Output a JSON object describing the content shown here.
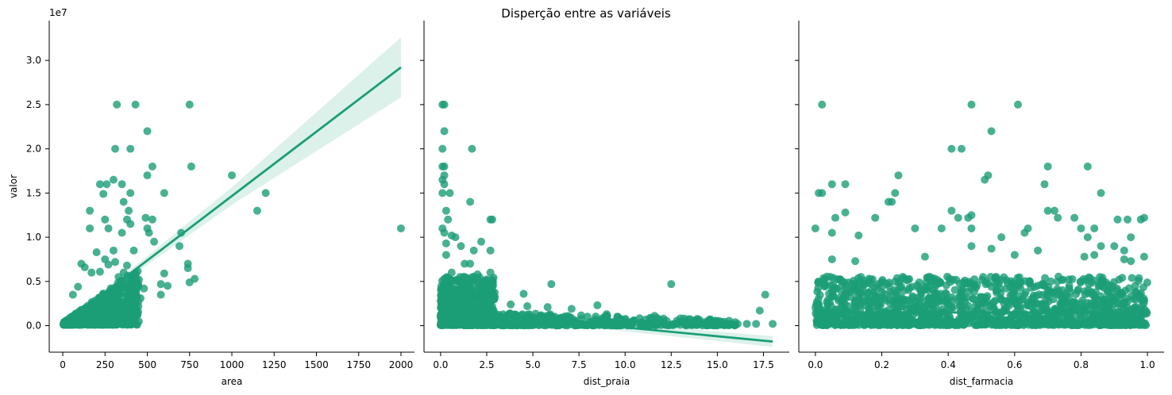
{
  "figure": {
    "title": "Disperção entre as variáveis",
    "colors": {
      "points": "#1b9e77",
      "line": "#1b9e77",
      "band": "#1b9e77"
    }
  },
  "chart_data": [
    {
      "type": "scatter",
      "title": "",
      "xlabel": "area",
      "ylabel": "valor",
      "y_offset_label": "1e7",
      "xlim": [
        -80,
        2080
      ],
      "ylim": [
        -3000000.0,
        34500000.0
      ],
      "xticks": [
        0,
        250,
        500,
        750,
        1000,
        1250,
        1500,
        1750,
        2000
      ],
      "xtick_labels": [
        "0",
        "250",
        "500",
        "750",
        "1000",
        "1250",
        "1500",
        "1750",
        "2000"
      ],
      "yticks": [
        0,
        5000000,
        10000000,
        15000000,
        20000000,
        25000000,
        30000000
      ],
      "ytick_labels": [
        "0.0",
        "0.5",
        "1.0",
        "1.5",
        "2.0",
        "2.5",
        "3.0"
      ],
      "grid": false,
      "points": [
        [
          320,
          25000000
        ],
        [
          430,
          25000000
        ],
        [
          750,
          25000000
        ],
        [
          500,
          22000000
        ],
        [
          310,
          20000000
        ],
        [
          400,
          20000000
        ],
        [
          530,
          18000000
        ],
        [
          760,
          18000000
        ],
        [
          1000,
          17000000
        ],
        [
          500,
          17000000
        ],
        [
          300,
          16500000
        ],
        [
          220,
          16000000
        ],
        [
          260,
          16000000
        ],
        [
          350,
          16000000
        ],
        [
          400,
          15000000
        ],
        [
          600,
          15000000
        ],
        [
          1200,
          15000000
        ],
        [
          240,
          14900000
        ],
        [
          360,
          14000000
        ],
        [
          390,
          13000000
        ],
        [
          1150,
          13000000
        ],
        [
          160,
          13000000
        ],
        [
          250,
          12000000
        ],
        [
          380,
          12000000
        ],
        [
          490,
          12200000
        ],
        [
          530,
          12000000
        ],
        [
          400,
          11500000
        ],
        [
          500,
          11000000
        ],
        [
          160,
          11000000
        ],
        [
          270,
          11000000
        ],
        [
          700,
          10500000
        ],
        [
          510,
          10500000
        ],
        [
          2000,
          11000000
        ],
        [
          350,
          10500000
        ],
        [
          690,
          9000000
        ],
        [
          540,
          9500000
        ],
        [
          740,
          7000000
        ],
        [
          740,
          6500000
        ],
        [
          780,
          5300000
        ],
        [
          600,
          5900000
        ],
        [
          750,
          4900000
        ],
        [
          620,
          4500000
        ],
        [
          580,
          4700000
        ],
        [
          480,
          4200000
        ],
        [
          460,
          3100000
        ],
        [
          430,
          2900000
        ],
        [
          580,
          3500000
        ],
        [
          110,
          7000000
        ],
        [
          200,
          8300000
        ],
        [
          300,
          8500000
        ],
        [
          420,
          8500000
        ],
        [
          60,
          3500000
        ],
        [
          90,
          4400000
        ],
        [
          130,
          6600000
        ],
        [
          170,
          6000000
        ],
        [
          330,
          5500000
        ],
        [
          360,
          6000000
        ],
        [
          450,
          5200000
        ],
        [
          250,
          7500000
        ],
        [
          270,
          6900000
        ],
        [
          220,
          6100000
        ],
        [
          310,
          7200000
        ],
        [
          380,
          6800000
        ]
      ],
      "cluster": {
        "x": [
          5,
          450
        ],
        "y_max_at_x": 7000000,
        "n": 900
      },
      "regression": {
        "slope": 14560,
        "intercept": 100000,
        "x_range": [
          10,
          2000
        ],
        "ci_band": [
          [
            300,
            300000.0
          ],
          [
            1000,
            1000000.0
          ],
          [
            2000,
            3400000.0
          ]
        ]
      }
    },
    {
      "type": "scatter",
      "title": "",
      "xlabel": "dist_praia",
      "ylabel": "",
      "xlim": [
        -0.9,
        18.9
      ],
      "ylim": [
        -3000000.0,
        34500000.0
      ],
      "xticks": [
        0,
        2.5,
        5,
        7.5,
        10,
        12.5,
        15,
        17.5
      ],
      "xtick_labels": [
        "0.0",
        "2.5",
        "5.0",
        "7.5",
        "10.0",
        "12.5",
        "15.0",
        "17.5"
      ],
      "yticks": [
        0,
        5000000,
        10000000,
        15000000,
        20000000,
        25000000,
        30000000
      ],
      "grid": false,
      "points": [
        [
          0.1,
          25000000
        ],
        [
          0.2,
          25000000
        ],
        [
          0.2,
          22000000
        ],
        [
          0.1,
          20000000
        ],
        [
          1.7,
          20000000
        ],
        [
          0.1,
          18000000
        ],
        [
          0.2,
          18000000
        ],
        [
          0.2,
          17000000
        ],
        [
          0.1,
          16500000
        ],
        [
          0.2,
          16000000
        ],
        [
          0.1,
          15000000
        ],
        [
          0.5,
          15000000
        ],
        [
          1.6,
          14000000
        ],
        [
          0.3,
          13000000
        ],
        [
          0.4,
          12000000
        ],
        [
          2.8,
          12000000
        ],
        [
          2.7,
          12000000
        ],
        [
          0.1,
          11000000
        ],
        [
          0.2,
          10500000
        ],
        [
          0.6,
          10200000
        ],
        [
          0.8,
          10000000
        ],
        [
          1.1,
          9000000
        ],
        [
          2.2,
          9500000
        ],
        [
          1.8,
          8500000
        ],
        [
          2.7,
          8500000
        ],
        [
          1.3,
          7000000
        ],
        [
          1.6,
          7000000
        ],
        [
          2.7,
          6000000
        ],
        [
          6,
          4700000
        ],
        [
          12.5,
          4700000
        ],
        [
          17.6,
          3500000
        ],
        [
          17.3,
          1700000
        ],
        [
          4.5,
          3600000
        ],
        [
          3.8,
          2400000
        ],
        [
          4.7,
          2200000
        ],
        [
          5.8,
          2100000
        ],
        [
          7.1,
          1900000
        ],
        [
          8.5,
          2300000
        ],
        [
          9.0,
          1300000
        ],
        [
          11.6,
          1100000
        ],
        [
          13.2,
          800000
        ],
        [
          14.0,
          500000
        ],
        [
          15.0,
          200000
        ],
        [
          16.1,
          200000
        ],
        [
          16.6,
          200000
        ],
        [
          17.1,
          200000
        ],
        [
          18.0,
          200000
        ],
        [
          13.7,
          200000
        ],
        [
          0.3,
          8000000
        ],
        [
          0.6,
          6000000
        ],
        [
          1.0,
          5000000
        ],
        [
          1.4,
          4000000
        ],
        [
          2.4,
          3200000
        ],
        [
          2.0,
          5800000
        ],
        [
          0.3,
          9300000
        ]
      ],
      "cluster": {
        "x": [
          0,
          3
        ],
        "y_max_at_x": 5500000,
        "n": 600,
        "tail_x": [
          3,
          16
        ],
        "tail_y_max": 1500000,
        "tail_n": 380
      },
      "regression": {
        "slope": -200000,
        "intercept": 1800000,
        "x_range": [
          0,
          18
        ],
        "ci_band": [
          [
            0,
            250000.0
          ],
          [
            18,
            600000.0
          ]
        ]
      }
    },
    {
      "type": "scatter",
      "title": "",
      "xlabel": "dist_farmacia",
      "ylabel": "",
      "xlim": [
        -0.05,
        1.05
      ],
      "ylim": [
        -3000000.0,
        34500000.0
      ],
      "xticks": [
        0,
        0.2,
        0.4,
        0.6,
        0.8,
        1.0
      ],
      "xtick_labels": [
        "0.0",
        "0.2",
        "0.4",
        "0.6",
        "0.8",
        "1.0"
      ],
      "yticks": [
        0,
        5000000,
        10000000,
        15000000,
        20000000,
        25000000,
        30000000
      ],
      "grid": false,
      "points": [
        [
          0.02,
          25000000
        ],
        [
          0.47,
          25000000
        ],
        [
          0.61,
          25000000
        ],
        [
          0.53,
          22000000
        ],
        [
          0.41,
          20000000
        ],
        [
          0.44,
          20000000
        ],
        [
          0.7,
          18000000
        ],
        [
          0.82,
          18000000
        ],
        [
          0.25,
          17000000
        ],
        [
          0.52,
          17000000
        ],
        [
          0.51,
          16500000
        ],
        [
          0.05,
          16000000
        ],
        [
          0.09,
          16000000
        ],
        [
          0.69,
          16000000
        ],
        [
          0.01,
          15000000
        ],
        [
          0.02,
          15000000
        ],
        [
          0.24,
          15000000
        ],
        [
          0.86,
          15000000
        ],
        [
          0.23,
          14000000
        ],
        [
          0.22,
          14000000
        ],
        [
          0.41,
          13000000
        ],
        [
          0.7,
          13000000
        ],
        [
          0.72,
          13000000
        ],
        [
          0.09,
          12800000
        ],
        [
          0.06,
          12200000
        ],
        [
          0.18,
          12200000
        ],
        [
          0.43,
          12200000
        ],
        [
          0.46,
          12200000
        ],
        [
          0.47,
          12500000
        ],
        [
          0.73,
          12200000
        ],
        [
          0.78,
          12200000
        ],
        [
          0.91,
          12000000
        ],
        [
          0.94,
          12000000
        ],
        [
          0.98,
          12000000
        ],
        [
          0.99,
          12200000
        ],
        [
          0.0,
          11000000
        ],
        [
          0.3,
          11000000
        ],
        [
          0.38,
          11000000
        ],
        [
          0.47,
          11000000
        ],
        [
          0.64,
          11000000
        ],
        [
          0.8,
          11000000
        ],
        [
          0.84,
          11000000
        ],
        [
          0.05,
          10500000
        ],
        [
          0.63,
          10500000
        ],
        [
          0.56,
          10000000
        ],
        [
          0.82,
          10000000
        ],
        [
          0.95,
          10000000
        ],
        [
          0.13,
          10200000
        ],
        [
          0.47,
          9000000
        ],
        [
          0.86,
          9000000
        ],
        [
          0.9,
          9000000
        ],
        [
          0.53,
          8700000
        ],
        [
          0.67,
          8500000
        ],
        [
          0.84,
          8000000
        ],
        [
          0.93,
          8500000
        ],
        [
          0.6,
          8000000
        ],
        [
          0.81,
          7800000
        ],
        [
          0.99,
          7800000
        ],
        [
          0.05,
          7500000
        ],
        [
          0.12,
          7300000
        ],
        [
          0.33,
          7800000
        ],
        [
          0.93,
          7500000
        ],
        [
          0.95,
          7300000
        ]
      ],
      "cluster": {
        "x": [
          0,
          1
        ],
        "y_max_at_x": 5500000,
        "n": 1400
      },
      "regression": {
        "slope": 0,
        "intercept": 1500000,
        "x_range": [
          0,
          1
        ],
        "ci_band": [
          [
            0,
            200000.0
          ],
          [
            1,
            200000.0
          ]
        ]
      }
    }
  ]
}
